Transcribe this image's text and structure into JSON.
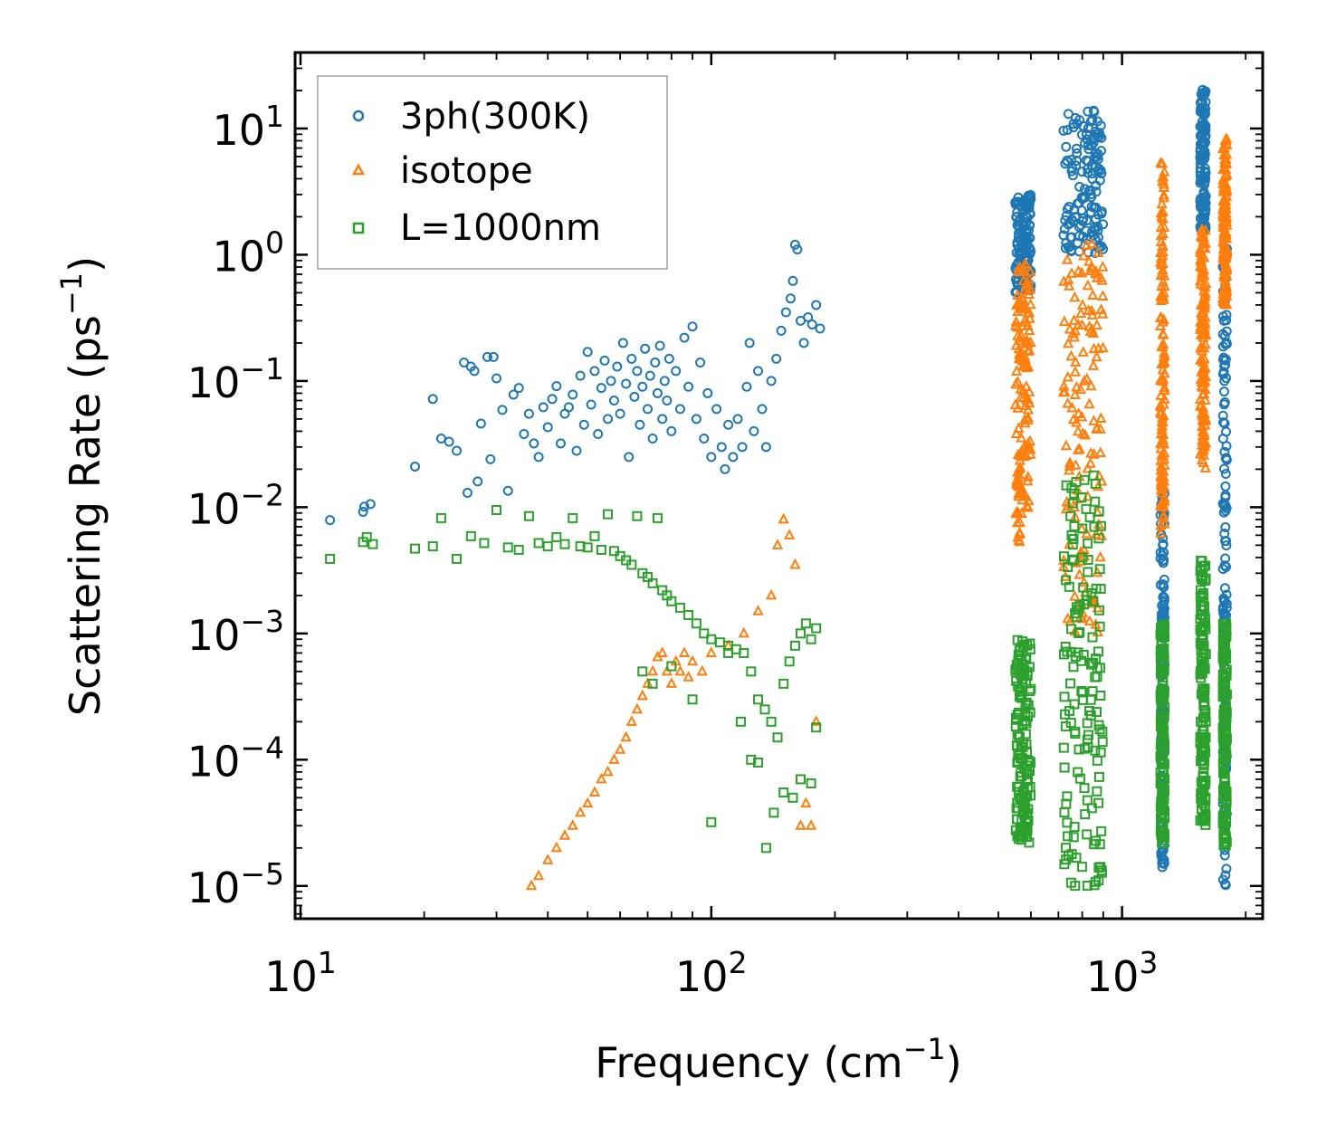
{
  "chart_data": {
    "type": "scatter",
    "xscale": "log",
    "yscale": "log",
    "xlabel_main": "Frequency (cm",
    "xlabel_exp": "−1",
    "xlabel_close": ")",
    "ylabel_main": "Scattering Rate (ps",
    "ylabel_exp": "−1",
    "ylabel_close": ")",
    "xlim": [
      9.7,
      2200
    ],
    "ylim": [
      5.5e-06,
      40
    ],
    "xticks": [
      {
        "value": 10,
        "base": "10",
        "exp": "1"
      },
      {
        "value": 100,
        "base": "10",
        "exp": "2"
      },
      {
        "value": 1000,
        "base": "10",
        "exp": "3"
      }
    ],
    "yticks": [
      {
        "value": 1e-05,
        "base": "10",
        "exp": "−5"
      },
      {
        "value": 0.0001,
        "base": "10",
        "exp": "−4"
      },
      {
        "value": 0.001,
        "base": "10",
        "exp": "−3"
      },
      {
        "value": 0.01,
        "base": "10",
        "exp": "−2"
      },
      {
        "value": 0.1,
        "base": "10",
        "exp": "−1"
      },
      {
        "value": 1,
        "base": "10",
        "exp": "0"
      },
      {
        "value": 10,
        "base": "10",
        "exp": "1"
      }
    ],
    "legend_position": "top-left",
    "series": [
      {
        "name": "3ph(300K)",
        "marker": "circle",
        "color": "#1f77b4",
        "points": [
          [
            11.8,
            0.0079
          ],
          [
            14.2,
            0.0092
          ],
          [
            14.3,
            0.0101
          ],
          [
            14.8,
            0.0106
          ],
          [
            19.0,
            0.021
          ],
          [
            21.0,
            0.072
          ],
          [
            22.0,
            0.035
          ],
          [
            23.0,
            0.033
          ],
          [
            24.0,
            0.028
          ],
          [
            25.0,
            0.14
          ],
          [
            25.5,
            0.013
          ],
          [
            26.0,
            0.13
          ],
          [
            26.5,
            0.12
          ],
          [
            27.0,
            0.016
          ],
          [
            27.5,
            0.046
          ],
          [
            28.5,
            0.155
          ],
          [
            29.0,
            0.024
          ],
          [
            29.5,
            0.155
          ],
          [
            30.0,
            0.105
          ],
          [
            31.0,
            0.059
          ],
          [
            32.0,
            0.0135
          ],
          [
            33.0,
            0.078
          ],
          [
            34.0,
            0.088
          ],
          [
            35.0,
            0.038
          ],
          [
            36.0,
            0.055
          ],
          [
            37.0,
            0.032
          ],
          [
            38.0,
            0.025
          ],
          [
            39.0,
            0.062
          ],
          [
            40.0,
            0.043
          ],
          [
            41.0,
            0.072
          ],
          [
            42.0,
            0.091
          ],
          [
            43.0,
            0.032
          ],
          [
            44.0,
            0.055
          ],
          [
            45.0,
            0.062
          ],
          [
            46.0,
            0.078
          ],
          [
            47.0,
            0.028
          ],
          [
            48.0,
            0.11
          ],
          [
            49.0,
            0.045
          ],
          [
            50.0,
            0.17
          ],
          [
            51.0,
            0.065
          ],
          [
            52.0,
            0.12
          ],
          [
            53.0,
            0.038
          ],
          [
            54.0,
            0.088
          ],
          [
            55.0,
            0.145
          ],
          [
            56.0,
            0.05
          ],
          [
            57.0,
            0.1
          ],
          [
            58.0,
            0.07
          ],
          [
            59.0,
            0.13
          ],
          [
            60.0,
            0.055
          ],
          [
            61.0,
            0.2
          ],
          [
            62.0,
            0.095
          ],
          [
            63.0,
            0.025
          ],
          [
            64.0,
            0.15
          ],
          [
            65.0,
            0.075
          ],
          [
            66.0,
            0.12
          ],
          [
            67.0,
            0.045
          ],
          [
            68.0,
            0.09
          ],
          [
            69.0,
            0.18
          ],
          [
            70.0,
            0.06
          ],
          [
            71.0,
            0.11
          ],
          [
            72.0,
            0.035
          ],
          [
            73.0,
            0.14
          ],
          [
            74.0,
            0.08
          ],
          [
            75.0,
            0.19
          ],
          [
            76.0,
            0.05
          ],
          [
            77.0,
            0.1
          ],
          [
            78.0,
            0.07
          ],
          [
            79.0,
            0.15
          ],
          [
            80.0,
            0.04
          ],
          [
            82.0,
            0.12
          ],
          [
            84.0,
            0.06
          ],
          [
            86.0,
            0.22
          ],
          [
            88.0,
            0.09
          ],
          [
            90.0,
            0.27
          ],
          [
            92.0,
            0.05
          ],
          [
            94.0,
            0.14
          ],
          [
            96.0,
            0.035
          ],
          [
            98.0,
            0.08
          ],
          [
            100.0,
            0.025
          ],
          [
            103.0,
            0.06
          ],
          [
            106.0,
            0.03
          ],
          [
            108.0,
            0.02
          ],
          [
            110.0,
            0.045
          ],
          [
            113.0,
            0.025
          ],
          [
            116.0,
            0.05
          ],
          [
            119.0,
            0.03
          ],
          [
            122.0,
            0.09
          ],
          [
            124.0,
            0.2
          ],
          [
            127.0,
            0.04
          ],
          [
            130.0,
            0.12
          ],
          [
            133.0,
            0.06
          ],
          [
            136.0,
            0.03
          ],
          [
            140.0,
            0.1
          ],
          [
            144.0,
            0.15
          ],
          [
            148.0,
            0.25
          ],
          [
            152.0,
            0.35
          ],
          [
            156.0,
            0.45
          ],
          [
            158.0,
            0.62
          ],
          [
            160.0,
            1.2
          ],
          [
            162.0,
            1.1
          ],
          [
            165.0,
            0.3
          ],
          [
            168.0,
            0.2
          ],
          [
            172.0,
            0.32
          ],
          [
            176.0,
            0.28
          ],
          [
            180.0,
            0.4
          ],
          [
            184.0,
            0.26
          ]
        ],
        "bands": [
          {
            "x": [
              550,
              600
            ],
            "ylo": 0.5,
            "yhi": 3.0
          },
          {
            "x": [
              720,
              900
            ],
            "ylo": 1.0,
            "yhi": 15.0
          },
          {
            "x": [
              1240,
              1270
            ],
            "ylo": 1.4e-05,
            "yhi": 0.013
          },
          {
            "x": [
              1550,
              1600
            ],
            "ylo": 1.5,
            "yhi": 21.0
          },
          {
            "x": [
              1760,
              1800
            ],
            "ylo": 1e-05,
            "yhi": 1.2
          }
        ]
      },
      {
        "name": "isotope",
        "marker": "triangle",
        "color": "#ff7f0e",
        "points": [
          [
            36.5,
            1e-05
          ],
          [
            38,
            1.2e-05
          ],
          [
            40,
            1.6e-05
          ],
          [
            42,
            2e-05
          ],
          [
            44,
            2.5e-05
          ],
          [
            46,
            3e-05
          ],
          [
            48,
            3.8e-05
          ],
          [
            50,
            4.5e-05
          ],
          [
            52,
            5.5e-05
          ],
          [
            54,
            7e-05
          ],
          [
            56,
            8e-05
          ],
          [
            58,
            0.0001
          ],
          [
            60,
            0.00012
          ],
          [
            62,
            0.00015
          ],
          [
            64,
            0.0002
          ],
          [
            66,
            0.00025
          ],
          [
            68,
            0.00032
          ],
          [
            70,
            0.0004
          ],
          [
            72,
            0.0005
          ],
          [
            74,
            0.00065
          ],
          [
            76,
            0.0007
          ],
          [
            78,
            0.0005
          ],
          [
            80,
            0.0004
          ],
          [
            82,
            0.0006
          ],
          [
            84,
            0.0005
          ],
          [
            86,
            0.0007
          ],
          [
            88,
            0.00045
          ],
          [
            90,
            0.0006
          ],
          [
            95,
            0.0005
          ],
          [
            100,
            0.0007
          ],
          [
            110,
            0.0008
          ],
          [
            120,
            0.001
          ],
          [
            130,
            0.0015
          ],
          [
            140,
            0.002
          ],
          [
            145,
            0.005
          ],
          [
            150,
            0.008
          ],
          [
            155,
            0.006
          ],
          [
            160,
            0.0035
          ],
          [
            165,
            3e-05
          ],
          [
            170,
            4.5e-05
          ],
          [
            175,
            3e-05
          ],
          [
            180,
            0.0002
          ]
        ],
        "bands": [
          {
            "x": [
              550,
              600
            ],
            "ylo": 0.005,
            "yhi": 0.9
          },
          {
            "x": [
              720,
              900
            ],
            "ylo": 0.001,
            "yhi": 1.4
          },
          {
            "x": [
              1240,
              1270
            ],
            "ylo": 0.006,
            "yhi": 5.5
          },
          {
            "x": [
              1550,
              1600
            ],
            "ylo": 0.02,
            "yhi": 1.6
          },
          {
            "x": [
              1760,
              1800
            ],
            "ylo": 0.4,
            "yhi": 8.5
          }
        ]
      },
      {
        "name": "L=1000nm",
        "marker": "square",
        "color": "#2ca02c",
        "points": [
          [
            11.8,
            0.0039
          ],
          [
            14.2,
            0.0053
          ],
          [
            14.5,
            0.0058
          ],
          [
            15,
            0.0051
          ],
          [
            19,
            0.0047
          ],
          [
            21,
            0.0049
          ],
          [
            22,
            0.0082
          ],
          [
            24,
            0.0039
          ],
          [
            26,
            0.0059
          ],
          [
            28,
            0.0052
          ],
          [
            30,
            0.0095
          ],
          [
            32,
            0.0048
          ],
          [
            34,
            0.0046
          ],
          [
            36,
            0.0085
          ],
          [
            38,
            0.0052
          ],
          [
            40,
            0.0049
          ],
          [
            42,
            0.0058
          ],
          [
            44,
            0.0051
          ],
          [
            46,
            0.0082
          ],
          [
            48,
            0.0049
          ],
          [
            50,
            0.0048
          ],
          [
            52,
            0.0059
          ],
          [
            54,
            0.0046
          ],
          [
            56,
            0.0088
          ],
          [
            58,
            0.0045
          ],
          [
            60,
            0.0041
          ],
          [
            62,
            0.0038
          ],
          [
            64,
            0.0035
          ],
          [
            66,
            0.0085
          ],
          [
            68,
            0.003
          ],
          [
            70,
            0.0028
          ],
          [
            72,
            0.0025
          ],
          [
            74,
            0.0082
          ],
          [
            76,
            0.0022
          ],
          [
            78,
            0.002
          ],
          [
            80,
            0.0018
          ],
          [
            84,
            0.0016
          ],
          [
            88,
            0.0014
          ],
          [
            92,
            0.0012
          ],
          [
            96,
            0.001
          ],
          [
            100,
            0.0009
          ],
          [
            105,
            0.00085
          ],
          [
            110,
            0.0008
          ],
          [
            115,
            0.00075
          ],
          [
            120,
            0.0007
          ],
          [
            125,
            0.0005
          ],
          [
            130,
            0.0003
          ],
          [
            135,
            0.00025
          ],
          [
            140,
            0.0002
          ],
          [
            145,
            0.00015
          ],
          [
            150,
            0.0004
          ],
          [
            155,
            0.0006
          ],
          [
            160,
            0.0008
          ],
          [
            165,
            0.001
          ],
          [
            170,
            0.0012
          ],
          [
            175,
            0.0009
          ],
          [
            180,
            0.0011
          ],
          [
            68,
            0.0005
          ],
          [
            72,
            0.0004
          ],
          [
            80,
            0.00055
          ],
          [
            90,
            0.0003
          ],
          [
            100,
            3.2e-05
          ],
          [
            110,
            0.0007
          ],
          [
            118,
            0.0002
          ],
          [
            125,
            0.0001
          ],
          [
            130,
            9.5e-05
          ],
          [
            136,
            2e-05
          ],
          [
            142,
            3.8e-05
          ],
          [
            150,
            5.5e-05
          ],
          [
            158,
            5e-05
          ],
          [
            165,
            7e-05
          ],
          [
            175,
            6.5e-05
          ],
          [
            180,
            0.00018
          ]
        ],
        "bands": [
          {
            "x": [
              550,
              600
            ],
            "ylo": 2.2e-05,
            "yhi": 0.0009
          },
          {
            "x": [
              720,
              900
            ],
            "ylo": 1e-05,
            "yhi": 0.018
          },
          {
            "x": [
              1240,
              1270
            ],
            "ylo": 2e-05,
            "yhi": 0.0012
          },
          {
            "x": [
              1550,
              1600
            ],
            "ylo": 3e-05,
            "yhi": 0.0038
          },
          {
            "x": [
              1760,
              1800
            ],
            "ylo": 2e-05,
            "yhi": 0.0012
          }
        ]
      }
    ]
  }
}
